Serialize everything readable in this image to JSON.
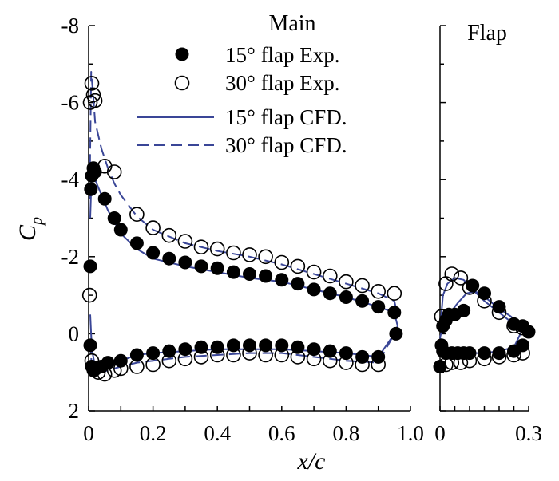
{
  "chart_data": [
    {
      "type": "scatter",
      "panel": "main",
      "title": "Main",
      "xlabel": "x/c",
      "ylabel": "C",
      "ylabel_sub": "p",
      "xlim": [
        0,
        1.0
      ],
      "ylim": [
        2,
        -8
      ],
      "y_inverted": true,
      "x_ticks": [
        "0",
        "0.2",
        "0.4",
        "0.6",
        "0.8",
        "1.0"
      ],
      "y_ticks": [
        "2",
        "0",
        "-2",
        "-4",
        "-6",
        "-8"
      ],
      "grid": false,
      "legend_position": "top-right",
      "legend": [
        {
          "label": "15° flap Exp.",
          "marker": "filled-circle"
        },
        {
          "label": "30° flap Exp.",
          "marker": "open-circle"
        },
        {
          "label": "15° flap CFD.",
          "line": "solid"
        },
        {
          "label": "30° flap CFD.",
          "line": "dashed"
        }
      ],
      "series": [
        {
          "name": "15° flap Exp.",
          "style": "filled",
          "x": [
            0.005,
            0.007,
            0.01,
            0.015,
            0.02,
            0.05,
            0.08,
            0.1,
            0.15,
            0.2,
            0.25,
            0.3,
            0.35,
            0.4,
            0.45,
            0.5,
            0.55,
            0.6,
            0.65,
            0.7,
            0.75,
            0.8,
            0.85,
            0.9,
            0.95,
            0.005,
            0.01,
            0.015,
            0.02,
            0.04,
            0.06,
            0.1,
            0.15,
            0.2,
            0.25,
            0.3,
            0.35,
            0.4,
            0.45,
            0.5,
            0.55,
            0.6,
            0.65,
            0.7,
            0.75,
            0.8,
            0.85,
            0.9,
            0.955
          ],
          "y": [
            -1.75,
            -3.75,
            -4.1,
            -4.3,
            -4.2,
            -3.5,
            -3.0,
            -2.7,
            -2.35,
            -2.1,
            -1.95,
            -1.85,
            -1.75,
            -1.7,
            -1.6,
            -1.55,
            -1.5,
            -1.4,
            -1.3,
            -1.15,
            -1.05,
            -0.95,
            -0.85,
            -0.7,
            -0.55,
            0.3,
            0.85,
            0.95,
            0.9,
            0.85,
            0.75,
            0.7,
            0.55,
            0.5,
            0.45,
            0.4,
            0.35,
            0.35,
            0.3,
            0.3,
            0.3,
            0.3,
            0.35,
            0.4,
            0.45,
            0.5,
            0.6,
            0.6,
            0.0
          ]
        },
        {
          "name": "30° flap Exp.",
          "style": "open",
          "x": [
            0.003,
            0.005,
            0.01,
            0.015,
            0.02,
            0.05,
            0.08,
            0.15,
            0.2,
            0.25,
            0.3,
            0.35,
            0.4,
            0.45,
            0.5,
            0.55,
            0.6,
            0.65,
            0.7,
            0.75,
            0.8,
            0.85,
            0.9,
            0.95,
            0.01,
            0.02,
            0.03,
            0.05,
            0.08,
            0.1,
            0.15,
            0.2,
            0.25,
            0.3,
            0.35,
            0.4,
            0.45,
            0.5,
            0.55,
            0.6,
            0.65,
            0.7,
            0.75,
            0.8,
            0.85,
            0.9
          ],
          "y": [
            -1.0,
            -6.0,
            -6.5,
            -6.2,
            -6.05,
            -4.35,
            -4.2,
            -3.1,
            -2.75,
            -2.55,
            -2.4,
            -2.25,
            -2.2,
            -2.1,
            -2.05,
            -2.0,
            -1.85,
            -1.75,
            -1.6,
            -1.5,
            -1.35,
            -1.25,
            -1.1,
            -1.05,
            0.7,
            0.9,
            1.0,
            1.05,
            0.95,
            0.9,
            0.85,
            0.8,
            0.7,
            0.65,
            0.6,
            0.55,
            0.55,
            0.5,
            0.55,
            0.55,
            0.6,
            0.65,
            0.7,
            0.75,
            0.8,
            0.8
          ]
        },
        {
          "name": "15° flap CFD.",
          "style": "solid",
          "x": [
            0.005,
            0.01,
            0.02,
            0.04,
            0.06,
            0.08,
            0.1,
            0.15,
            0.2,
            0.3,
            0.4,
            0.5,
            0.6,
            0.7,
            0.8,
            0.9,
            0.95,
            0.96
          ],
          "y": [
            -3.0,
            -4.3,
            -4.0,
            -3.6,
            -3.2,
            -2.9,
            -2.6,
            -2.2,
            -1.95,
            -1.75,
            -1.6,
            -1.45,
            -1.35,
            -1.15,
            -0.95,
            -0.7,
            -0.55,
            -0.2
          ]
        },
        {
          "name": "15° flap CFD. lower",
          "style": "solid",
          "x": [
            0.005,
            0.01,
            0.02,
            0.04,
            0.06,
            0.1,
            0.15,
            0.2,
            0.3,
            0.4,
            0.5,
            0.6,
            0.7,
            0.8,
            0.9,
            0.95,
            0.96
          ],
          "y": [
            -0.5,
            0.4,
            0.85,
            0.95,
            0.85,
            0.7,
            0.55,
            0.5,
            0.45,
            0.4,
            0.4,
            0.4,
            0.45,
            0.5,
            0.6,
            0.0,
            -0.2
          ]
        },
        {
          "name": "30° flap CFD.",
          "style": "dashed",
          "x": [
            0.003,
            0.008,
            0.015,
            0.02,
            0.04,
            0.06,
            0.08,
            0.1,
            0.15,
            0.2,
            0.3,
            0.4,
            0.5,
            0.6,
            0.7,
            0.8,
            0.9,
            0.95,
            0.96
          ],
          "y": [
            -3.5,
            -6.8,
            -6.1,
            -5.5,
            -4.8,
            -4.3,
            -3.9,
            -3.6,
            -3.05,
            -2.7,
            -2.35,
            -2.15,
            -2.0,
            -1.8,
            -1.55,
            -1.3,
            -1.05,
            -0.85,
            -0.5
          ]
        },
        {
          "name": "30° flap CFD. lower",
          "style": "dashed",
          "x": [
            0.005,
            0.01,
            0.02,
            0.04,
            0.06,
            0.1,
            0.15,
            0.2,
            0.3,
            0.4,
            0.5,
            0.6,
            0.7,
            0.8,
            0.9,
            0.95
          ],
          "y": [
            0.2,
            0.9,
            1.0,
            1.0,
            0.95,
            0.85,
            0.75,
            0.7,
            0.6,
            0.55,
            0.5,
            0.5,
            0.6,
            0.7,
            0.75,
            0.0
          ]
        }
      ]
    },
    {
      "type": "scatter",
      "panel": "flap",
      "title": "Flap",
      "xlim": [
        0,
        0.3
      ],
      "ylim": [
        2,
        -8
      ],
      "y_inverted": true,
      "x_ticks": [
        "0",
        "0.3"
      ],
      "grid": false,
      "series": [
        {
          "name": "15° flap Exp.",
          "style": "filled",
          "x": [
            0.0,
            0.005,
            0.01,
            0.02,
            0.03,
            0.05,
            0.08,
            0.11,
            0.15,
            0.2,
            0.25,
            0.28,
            0.3,
            0.01,
            0.02,
            0.04,
            0.06,
            0.08,
            0.1,
            0.15,
            0.2,
            0.25,
            0.28
          ],
          "y": [
            0.85,
            0.3,
            -0.2,
            -0.35,
            -0.5,
            -0.5,
            -0.6,
            -1.25,
            -1.05,
            -0.7,
            -0.25,
            -0.2,
            -0.05,
            0.45,
            0.5,
            0.5,
            0.5,
            0.5,
            0.5,
            0.5,
            0.5,
            0.45,
            0.3
          ]
        },
        {
          "name": "30° flap Exp.",
          "style": "open",
          "x": [
            0.005,
            0.02,
            0.04,
            0.07,
            0.1,
            0.15,
            0.2,
            0.25,
            0.28,
            0.02,
            0.04,
            0.07,
            0.1,
            0.15,
            0.2,
            0.25,
            0.28
          ],
          "y": [
            -0.45,
            -1.3,
            -1.55,
            -1.45,
            -1.2,
            -0.85,
            -0.55,
            -0.2,
            -0.15,
            0.8,
            0.75,
            0.75,
            0.7,
            0.65,
            0.6,
            0.55,
            0.5
          ]
        },
        {
          "name": "15° flap CFD.",
          "style": "solid",
          "x": [
            0.0,
            0.01,
            0.03,
            0.06,
            0.09,
            0.12,
            0.16,
            0.2,
            0.24,
            0.27,
            0.285
          ],
          "y": [
            0.1,
            -0.2,
            -0.5,
            -0.8,
            -1.05,
            -1.1,
            -0.9,
            -0.65,
            -0.45,
            -0.25,
            -0.2
          ]
        },
        {
          "name": "15° flap CFD. lower",
          "style": "solid",
          "x": [
            0.0,
            0.02,
            0.05,
            0.1,
            0.15,
            0.2,
            0.25,
            0.285
          ],
          "y": [
            0.1,
            0.5,
            0.5,
            0.5,
            0.5,
            0.45,
            0.35,
            -0.2
          ]
        },
        {
          "name": "30° flap CFD.",
          "style": "solid",
          "x": [
            0.0,
            0.01,
            0.025,
            0.05,
            0.08,
            0.11,
            0.15,
            0.2,
            0.25,
            0.28
          ],
          "y": [
            -0.1,
            -1.0,
            -1.3,
            -1.45,
            -1.4,
            -1.15,
            -0.85,
            -0.55,
            -0.25,
            -0.1
          ]
        }
      ]
    }
  ]
}
